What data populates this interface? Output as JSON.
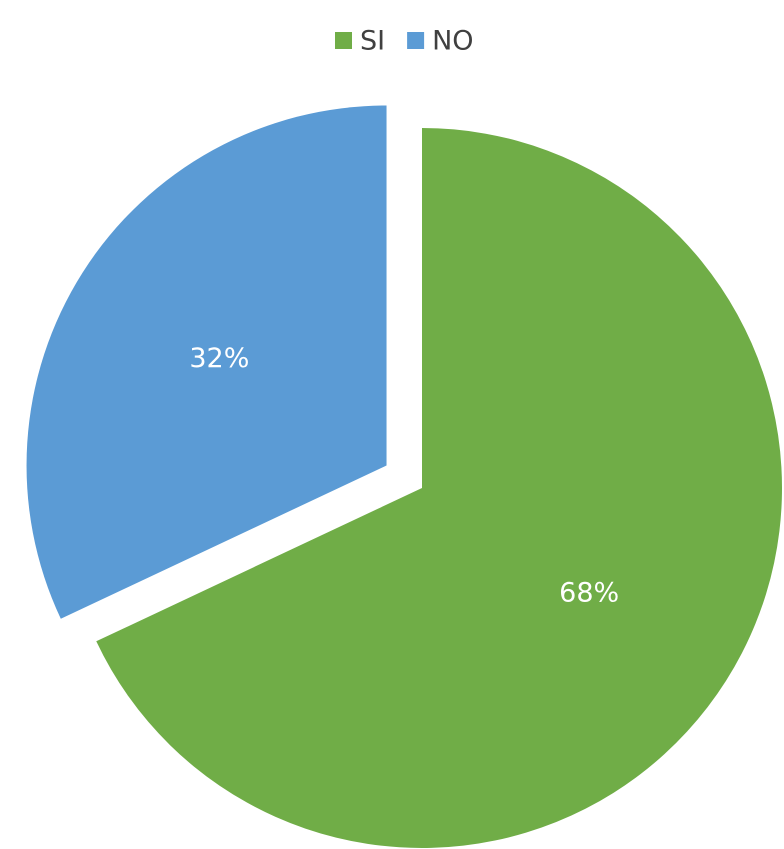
{
  "chart_data": {
    "type": "pie",
    "categories": [
      "SI",
      "NO"
    ],
    "values": [
      68,
      32
    ],
    "value_labels": [
      "68%",
      "32%"
    ],
    "colors": [
      "#70ad47",
      "#5b9bd5"
    ],
    "legend": "top",
    "exploded": "NO"
  }
}
